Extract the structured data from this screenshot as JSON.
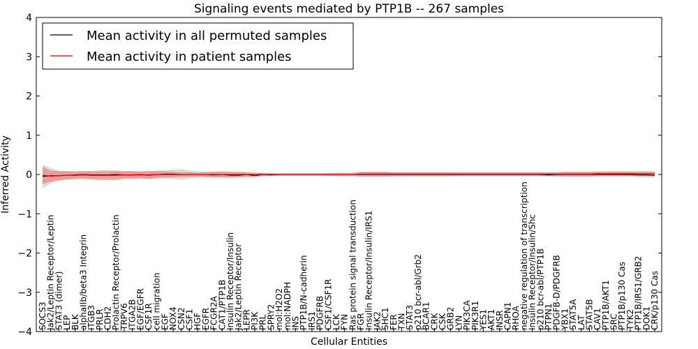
{
  "chart_data": {
    "type": "line",
    "title": "Signaling events mediated by PTP1B -- 267 samples",
    "xlabel": "Cellular Entities",
    "ylabel": "Inferred Activity",
    "ylim": [
      -4,
      4
    ],
    "yticks": [
      "−4",
      "−3",
      "−2",
      "−1",
      "0",
      "1",
      "2",
      "3",
      "4"
    ],
    "legend_position": "top-left",
    "colors": {
      "permuted": "#000000",
      "patient": "#e00000",
      "patient_band": "#f08080",
      "permuted_band": "#c0c0c0"
    },
    "categories": [
      "SOCS3",
      "Jak2/Leptin Receptor/Leptin",
      "STAT3 (dimer)",
      "LEP",
      "BLK",
      "alphaIIb/beta3 Integrin",
      "ITGB3",
      "PRLR",
      "CDH2",
      "Prolactin Receptor/Prolactin",
      "TRPV6",
      "ITGA2B",
      "EGF/EGFR",
      "CSF1R",
      "cell migration",
      "EGF",
      "NOX4",
      "CSN2",
      "CSF1",
      "HGF",
      "EGFR",
      "FCGR2A",
      "CAT1/PTP1B",
      "Insulin Receptor/Insulin",
      "Jak2/Leptin Receptor",
      "LEPR",
      "PI3K",
      "PRL",
      "SPRY2",
      "mol:H2O2",
      "mol:NADPH",
      "INS",
      "PTP1B/N-cadherin",
      "IRS1",
      "PDGFRB",
      "CSF1/CSF1R",
      "LCK",
      "FYN",
      "Ras protein signal transduction",
      "FGR",
      "Insulin Receptor/Insulin/IRS1",
      "JAK2",
      "SHC1",
      "FER",
      "TXN",
      "STAT3",
      "p210 bcr-abl/Grb2",
      "BCAR1",
      "CRK",
      "CSK",
      "GRB2",
      "LYN",
      "PIK3CA",
      "PIK3R1",
      "YES1",
      "AKT1",
      "INSR",
      "CAPN1",
      "RHOA",
      "negative regulation of transcription",
      "Insulin Receptor/Insulin/Shc",
      "p210 bcr-abl/PTP1B",
      "PTPN1",
      "PDGFB-D/PDGFRB",
      "YBX1",
      "STAT5A",
      "LAT",
      "STAT5B",
      "CAV1",
      "PTP1B/AKT1",
      "SRC",
      "PTP1B/p130 Cas",
      "TYK2",
      "PTP1B/IRS1/GRB2",
      "DOK1",
      "CRK/p130 Cas"
    ],
    "series": [
      {
        "name": "Mean activity in all permuted samples",
        "color": "#000000",
        "values": [
          -0.05,
          -0.03,
          -0.03,
          -0.02,
          -0.01,
          0.0,
          -0.01,
          -0.01,
          -0.01,
          0.0,
          -0.01,
          -0.01,
          0.0,
          -0.02,
          0.0,
          0.01,
          0.01,
          0.0,
          0.0,
          0.0,
          0.0,
          -0.01,
          0.0,
          -0.02,
          -0.02,
          0.0,
          -0.03,
          0.0,
          -0.01,
          0.0,
          0.0,
          0.0,
          0.0,
          0.0,
          0.0,
          0.0,
          0.0,
          0.0,
          0.0,
          0.0,
          0.0,
          0.0,
          0.0,
          0.0,
          0.0,
          0.0,
          0.0,
          0.0,
          0.0,
          0.0,
          0.0,
          0.0,
          0.0,
          0.0,
          0.0,
          0.0,
          0.0,
          0.0,
          0.0,
          0.0,
          0.0,
          0.0,
          -0.01,
          0.0,
          0.0,
          0.0,
          0.0,
          0.0,
          0.0,
          0.0,
          0.0,
          0.0,
          0.0,
          -0.01,
          -0.01,
          -0.02
        ],
        "band": [
          0.3,
          0.2,
          0.12,
          0.1,
          0.08,
          0.08,
          0.08,
          0.08,
          0.08,
          0.08,
          0.08,
          0.08,
          0.08,
          0.1,
          0.1,
          0.1,
          0.12,
          0.14,
          0.1,
          0.08,
          0.08,
          0.08,
          0.06,
          0.06,
          0.06,
          0.06,
          0.05,
          0.05,
          0.04,
          0.03,
          0.03,
          0.03,
          0.03,
          0.03,
          0.03,
          0.03,
          0.03,
          0.03,
          0.04,
          0.06,
          0.06,
          0.06,
          0.06,
          0.06,
          0.06,
          0.06,
          0.06,
          0.06,
          0.06,
          0.06,
          0.06,
          0.05,
          0.05,
          0.05,
          0.05,
          0.05,
          0.05,
          0.05,
          0.05,
          0.05,
          0.05,
          0.05,
          0.05,
          0.06,
          0.06,
          0.06,
          0.06,
          0.06,
          0.06,
          0.06,
          0.06,
          0.06,
          0.06,
          0.06,
          0.06,
          0.06
        ]
      },
      {
        "name": "Mean activity in patient samples",
        "color": "#e00000",
        "values": [
          -0.02,
          -0.04,
          -0.03,
          -0.02,
          -0.02,
          -0.01,
          -0.02,
          -0.02,
          -0.02,
          -0.02,
          -0.01,
          -0.01,
          -0.01,
          -0.01,
          0.0,
          0.0,
          0.0,
          0.0,
          0.0,
          0.0,
          0.0,
          0.0,
          0.0,
          0.0,
          0.0,
          0.0,
          0.0,
          0.0,
          0.0,
          0.0,
          0.0,
          0.0,
          0.0,
          0.0,
          0.0,
          0.0,
          0.0,
          0.0,
          0.0,
          0.01,
          0.01,
          0.01,
          0.01,
          0.01,
          0.01,
          0.01,
          0.01,
          0.01,
          0.01,
          0.01,
          0.01,
          0.01,
          0.01,
          0.01,
          0.01,
          0.01,
          0.01,
          0.01,
          0.01,
          0.01,
          0.01,
          0.01,
          0.01,
          0.01,
          0.01,
          0.01,
          0.01,
          0.01,
          0.02,
          0.02,
          0.02,
          0.02,
          0.02,
          0.02,
          0.02,
          0.02
        ],
        "band": [
          0.22,
          0.14,
          0.12,
          0.11,
          0.1,
          0.1,
          0.11,
          0.12,
          0.12,
          0.12,
          0.1,
          0.1,
          0.09,
          0.1,
          0.09,
          0.08,
          0.07,
          0.06,
          0.06,
          0.05,
          0.06,
          0.07,
          0.08,
          0.08,
          0.07,
          0.06,
          0.05,
          0.04,
          0.03,
          0.03,
          0.03,
          0.03,
          0.03,
          0.03,
          0.03,
          0.04,
          0.04,
          0.04,
          0.04,
          0.06,
          0.06,
          0.06,
          0.06,
          0.05,
          0.05,
          0.05,
          0.05,
          0.05,
          0.05,
          0.05,
          0.05,
          0.05,
          0.05,
          0.05,
          0.05,
          0.05,
          0.05,
          0.05,
          0.05,
          0.05,
          0.05,
          0.05,
          0.05,
          0.05,
          0.06,
          0.06,
          0.06,
          0.06,
          0.06,
          0.06,
          0.06,
          0.06,
          0.06,
          0.06,
          0.06,
          0.06
        ]
      }
    ]
  }
}
